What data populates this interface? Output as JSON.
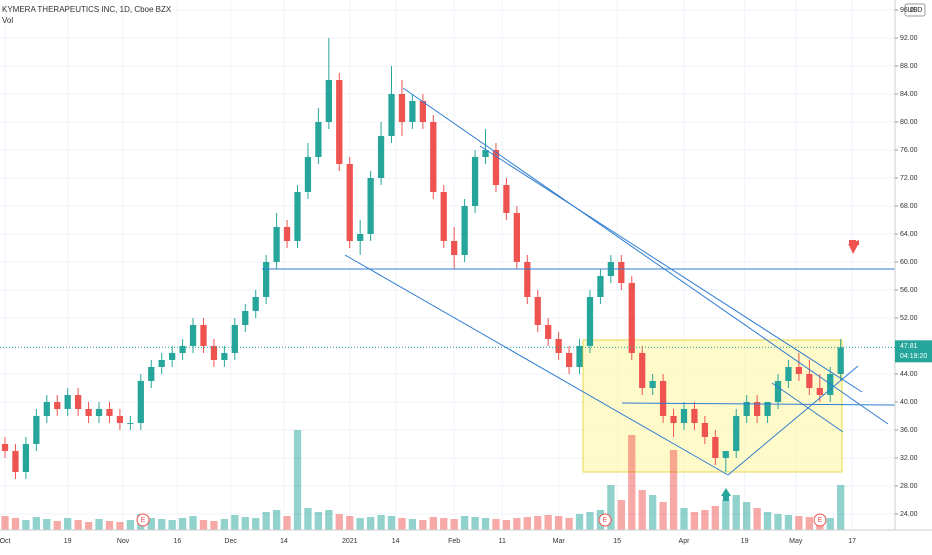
{
  "chart_data": {
    "type": "candlestick",
    "title": "KYMERA THERAPEUTICS INC, 1D, Cboe BZX",
    "subtitle": "Vol",
    "currency": "USD",
    "up_color": "#26a69a",
    "down_color": "#ef5350",
    "open": [
      34,
      33,
      30,
      34,
      38,
      40,
      39,
      41,
      39,
      38,
      39,
      38,
      37,
      37,
      43,
      45,
      46,
      47,
      48,
      51,
      48,
      46,
      47,
      51,
      53,
      55,
      60,
      65,
      63,
      70,
      75,
      80,
      86,
      74,
      63,
      64,
      72,
      78,
      84,
      80,
      83,
      80,
      70,
      63,
      61,
      68,
      75,
      76,
      71,
      67,
      60,
      55,
      51,
      49,
      47,
      45,
      48,
      55,
      58,
      60,
      57,
      47,
      42,
      43,
      38,
      37,
      39,
      37,
      35,
      32,
      33,
      38,
      40,
      38,
      40,
      43,
      45,
      44,
      42,
      41,
      44
    ],
    "high": [
      35,
      34,
      35,
      39,
      41,
      41,
      42,
      42,
      40,
      40,
      40,
      39,
      38,
      44,
      46,
      47,
      48,
      49,
      52,
      52,
      49,
      48,
      52,
      54,
      56,
      61,
      67,
      66,
      71,
      77,
      82,
      92,
      87,
      75,
      66,
      73,
      80,
      88,
      86,
      84,
      84,
      81,
      71,
      65,
      69,
      76,
      79,
      77,
      72,
      68,
      61,
      56,
      52,
      50,
      48,
      49,
      56,
      59,
      61,
      61,
      58,
      48,
      44,
      44,
      39,
      40,
      40,
      38,
      36,
      33,
      39,
      41,
      41,
      40,
      44,
      46,
      47,
      46,
      44,
      45,
      49
    ],
    "low": [
      32,
      29,
      29,
      33,
      37,
      38,
      38,
      38,
      37,
      37,
      37,
      36,
      36,
      36,
      42,
      44,
      45,
      46,
      47,
      47,
      45,
      45,
      46,
      50,
      52,
      54,
      59,
      62,
      62,
      69,
      74,
      79,
      73,
      62,
      61,
      63,
      71,
      77,
      78,
      79,
      79,
      69,
      62,
      59,
      60,
      67,
      74,
      70,
      66,
      59,
      54,
      50,
      48,
      46,
      44,
      44,
      47,
      54,
      57,
      56,
      46,
      41,
      41,
      37,
      35,
      36,
      36,
      34,
      31,
      30,
      32,
      37,
      37,
      37,
      39,
      42,
      43,
      41,
      40,
      40,
      43
    ],
    "close": [
      33,
      30,
      34,
      38,
      40,
      39,
      41,
      39,
      38,
      39,
      38,
      37,
      37,
      43,
      45,
      46,
      47,
      48,
      51,
      48,
      46,
      47,
      51,
      53,
      55,
      60,
      65,
      63,
      70,
      75,
      80,
      86,
      74,
      63,
      64,
      72,
      78,
      84,
      80,
      83,
      80,
      70,
      63,
      61,
      68,
      75,
      76,
      71,
      67,
      60,
      55,
      51,
      49,
      47,
      45,
      48,
      55,
      58,
      60,
      57,
      47,
      42,
      43,
      38,
      37,
      39,
      37,
      35,
      32,
      33,
      38,
      40,
      38,
      40,
      43,
      45,
      44,
      42,
      41,
      44,
      47.81
    ],
    "volume": [
      14,
      12,
      10,
      13,
      11,
      9,
      12,
      10,
      8,
      11,
      9,
      8,
      10,
      16,
      12,
      11,
      10,
      12,
      14,
      10,
      9,
      11,
      15,
      13,
      12,
      18,
      20,
      14,
      100,
      22,
      18,
      20,
      16,
      14,
      12,
      13,
      15,
      14,
      12,
      11,
      10,
      13,
      12,
      11,
      14,
      13,
      12,
      11,
      10,
      12,
      13,
      14,
      15,
      14,
      12,
      16,
      18,
      20,
      45,
      30,
      95,
      40,
      35,
      28,
      80,
      22,
      18,
      20,
      24,
      30,
      35,
      28,
      22,
      18,
      16,
      15,
      14,
      13,
      14,
      12,
      45
    ],
    "ylim": [
      21.71,
      97.43
    ],
    "yticks": [
      {
        "value": 24,
        "label": "24.00"
      },
      {
        "value": 28,
        "label": "28.00"
      },
      {
        "value": 32,
        "label": "32.00"
      },
      {
        "value": 36,
        "label": "36.00"
      },
      {
        "value": 40,
        "label": "40.00"
      },
      {
        "value": 44,
        "label": "44.00"
      },
      {
        "value": 48,
        "label": "48.00"
      },
      {
        "value": 52,
        "label": "52.00"
      },
      {
        "value": 56,
        "label": "56.00"
      },
      {
        "value": 60,
        "label": "60.00"
      },
      {
        "value": 64,
        "label": "64.00"
      },
      {
        "value": 68,
        "label": "68.00"
      },
      {
        "value": 72,
        "label": "72.00"
      },
      {
        "value": 76,
        "label": "76.00"
      },
      {
        "value": 80,
        "label": "80.00"
      },
      {
        "value": 84,
        "label": "84.00"
      },
      {
        "value": 88,
        "label": "88.00"
      },
      {
        "value": 92,
        "label": "92.00"
      },
      {
        "value": 96,
        "label": "96.00"
      }
    ],
    "xlim": [
      -0.48,
      85.2
    ],
    "xticks": [
      {
        "value": 0,
        "label": "Oct"
      },
      {
        "value": 6,
        "label": "19"
      },
      {
        "value": 11.3,
        "label": "Nov"
      },
      {
        "value": 16.5,
        "label": "16"
      },
      {
        "value": 21.6,
        "label": "Dec"
      },
      {
        "value": 26.7,
        "label": "14"
      },
      {
        "value": 33,
        "label": "2021"
      },
      {
        "value": 37.4,
        "label": "14"
      },
      {
        "value": 43,
        "label": "Feb"
      },
      {
        "value": 47.6,
        "label": "11"
      },
      {
        "value": 53,
        "label": "Mar"
      },
      {
        "value": 58.6,
        "label": "15"
      },
      {
        "value": 65,
        "label": "Apr"
      },
      {
        "value": 70.8,
        "label": "19"
      },
      {
        "value": 75.7,
        "label": "May"
      },
      {
        "value": 81.1,
        "label": "17"
      }
    ],
    "last_price": 47.81,
    "countdown": "04:19:20",
    "earnings_label": "E"
  }
}
